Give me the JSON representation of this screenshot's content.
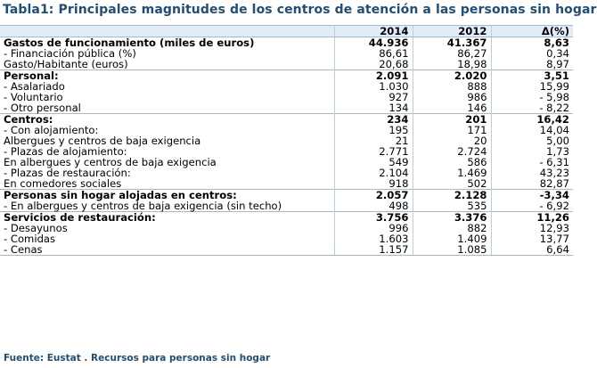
{
  "title": "Tabla1: Principales magnitudes de los centros de atención a las personas sin hogar",
  "headers": [
    "",
    "2014",
    "2012",
    "Δ(%)"
  ],
  "rows": [
    {
      "type": "sec",
      "label": "Gastos de funcionamiento (miles de euros)",
      "v2014": "44.936",
      "v2012": "41.367",
      "delta": "8,63"
    },
    {
      "type": "item",
      "label": "- Financiación pública (%)",
      "v2014": "86,61",
      "v2012": "86,27",
      "delta": "0,34"
    },
    {
      "type": "item plain",
      "label": "Gasto/Habitante (euros)",
      "v2014": "20,68",
      "v2012": "18,98",
      "delta": "8,97"
    },
    {
      "type": "sec pers",
      "label": "Personal:",
      "v2014": "2.091",
      "v2012": "2.020",
      "delta": "3,51"
    },
    {
      "type": "item",
      "label": "- Asalariado",
      "v2014": "1.030",
      "v2012": "888",
      "delta": "15,99"
    },
    {
      "type": "item",
      "label": "- Voluntario",
      "v2014": "927",
      "v2012": "986",
      "delta": "- 5,98"
    },
    {
      "type": "item",
      "label": "- Otro personal",
      "v2014": "134",
      "v2012": "146",
      "delta": "- 8,22"
    },
    {
      "type": "sec",
      "label": "Centros:",
      "v2014": "234",
      "v2012": "201",
      "delta": "16,42"
    },
    {
      "type": "item",
      "label": "- Con alojamiento:",
      "v2014": "195",
      "v2012": "171",
      "delta": "14,04"
    },
    {
      "type": "item sub",
      "label": "Albergues y centros de baja exigencia",
      "v2014": "21",
      "v2012": "20",
      "delta": "5,00"
    },
    {
      "type": "item",
      "label": "- Plazas de alojamiento:",
      "v2014": "2.771",
      "v2012": "2.724",
      "delta": "1,73"
    },
    {
      "type": "item sub2",
      "label": "En albergues y centros de baja exigencia",
      "v2014": "549",
      "v2012": "586",
      "delta": "- 6,31"
    },
    {
      "type": "item",
      "label": "- Plazas de restauración:",
      "v2014": "2.104",
      "v2012": "1.469",
      "delta": "43,23"
    },
    {
      "type": "item sub2",
      "label": "En comedores sociales",
      "v2014": "918",
      "v2012": "502",
      "delta": "82,87"
    },
    {
      "type": "sec",
      "label": "Personas sin hogar alojadas en centros:",
      "v2014": "2.057",
      "v2012": "2.128",
      "delta": "-3,34"
    },
    {
      "type": "item",
      "label": "- En albergues y centros de baja exigencia (sin techo)",
      "v2014": "498",
      "v2012": "535",
      "delta": "- 6,92"
    },
    {
      "type": "sec",
      "label": "Servicios de restauración:",
      "v2014": "3.756",
      "v2012": "3.376",
      "delta": "11,26"
    },
    {
      "type": "item",
      "label": "- Desayunos",
      "v2014": "996",
      "v2012": "882",
      "delta": "12,93"
    },
    {
      "type": "item",
      "label": "- Comidas",
      "v2014": "1.603",
      "v2012": "1.409",
      "delta": "13,77"
    },
    {
      "type": "item last",
      "label": "- Cenas",
      "v2014": "1.157",
      "v2012": "1.085",
      "delta": "6,64"
    }
  ],
  "source": "Fuente: Eustat . Recursos para personas sin hogar"
}
